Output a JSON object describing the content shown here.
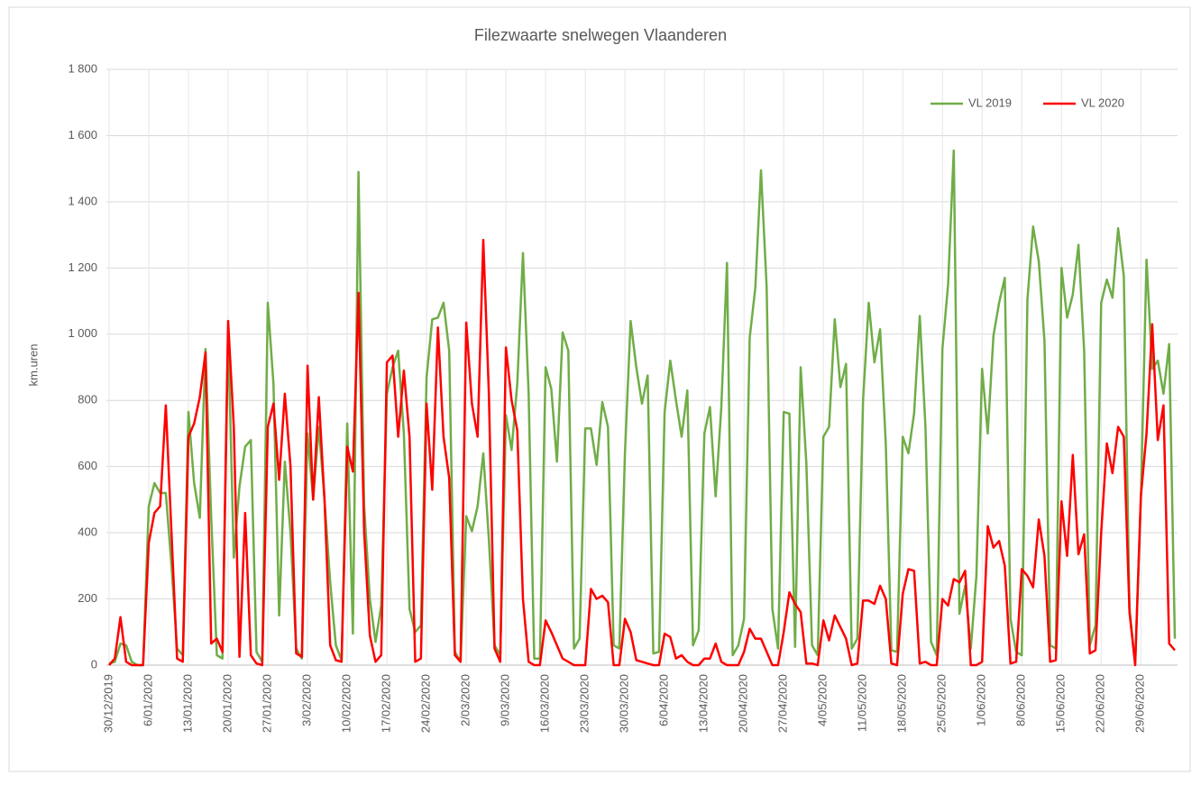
{
  "chart_data": {
    "type": "line",
    "title": "Filezwaarte snelwegen Vlaanderen",
    "y_label": "km.uren",
    "categories": [
      "30/12/2019",
      null,
      null,
      null,
      null,
      null,
      null,
      "6/01/2020",
      null,
      null,
      null,
      null,
      null,
      null,
      "13/01/2020",
      null,
      null,
      null,
      null,
      null,
      null,
      "20/01/2020",
      null,
      null,
      null,
      null,
      null,
      null,
      "27/01/2020",
      null,
      null,
      null,
      null,
      null,
      null,
      "3/02/2020",
      null,
      null,
      null,
      null,
      null,
      null,
      "10/02/2020",
      null,
      null,
      null,
      null,
      null,
      null,
      "17/02/2020",
      null,
      null,
      null,
      null,
      null,
      null,
      "24/02/2020",
      null,
      null,
      null,
      null,
      null,
      null,
      "2/03/2020",
      null,
      null,
      null,
      null,
      null,
      null,
      "9/03/2020",
      null,
      null,
      null,
      null,
      null,
      null,
      "16/03/2020",
      null,
      null,
      null,
      null,
      null,
      null,
      "23/03/2020",
      null,
      null,
      null,
      null,
      null,
      null,
      "30/03/2020",
      null,
      null,
      null,
      null,
      null,
      null,
      "6/04/2020",
      null,
      null,
      null,
      null,
      null,
      null,
      "13/04/2020",
      null,
      null,
      null,
      null,
      null,
      null,
      "20/04/2020",
      null,
      null,
      null,
      null,
      null,
      null,
      "27/04/2020",
      null,
      null,
      null,
      null,
      null,
      null,
      "4/05/2020",
      null,
      null,
      null,
      null,
      null,
      null,
      "11/05/2020",
      null,
      null,
      null,
      null,
      null,
      null,
      "18/05/2020",
      null,
      null,
      null,
      null,
      null,
      null,
      "25/05/2020",
      null,
      null,
      null,
      null,
      null,
      null,
      "1/06/2020",
      null,
      null,
      null,
      null,
      null,
      null,
      "8/06/2020",
      null,
      null,
      null,
      null,
      null,
      null,
      "15/06/2020",
      null,
      null,
      null,
      null,
      null,
      null,
      "22/06/2020",
      null,
      null,
      null,
      null,
      null,
      null,
      "29/06/2020",
      null,
      null,
      null,
      null,
      null,
      null
    ],
    "series": [
      {
        "name": "VL 2019",
        "color": "#70ad47",
        "values": [
          5,
          10,
          65,
          60,
          10,
          0,
          0,
          480,
          550,
          520,
          520,
          300,
          50,
          30,
          765,
          550,
          445,
          955,
          450,
          30,
          20,
          1010,
          325,
          540,
          660,
          680,
          40,
          10,
          1095,
          850,
          150,
          615,
          400,
          50,
          20,
          700,
          500,
          720,
          500,
          250,
          60,
          15,
          730,
          95,
          1490,
          480,
          200,
          70,
          180,
          820,
          900,
          950,
          700,
          170,
          100,
          120,
          870,
          1045,
          1050,
          1095,
          950,
          40,
          10,
          450,
          405,
          480,
          640,
          380,
          60,
          30,
          755,
          650,
          850,
          1245,
          820,
          20,
          20,
          900,
          835,
          615,
          1005,
          950,
          50,
          80,
          715,
          715,
          605,
          795,
          720,
          60,
          50,
          640,
          1040,
          900,
          790,
          875,
          35,
          40,
          765,
          920,
          800,
          690,
          830,
          60,
          105,
          700,
          780,
          510,
          780,
          1215,
          30,
          60,
          140,
          990,
          1140,
          1495,
          1140,
          170,
          50,
          765,
          760,
          55,
          900,
          610,
          60,
          30,
          690,
          720,
          1045,
          840,
          910,
          50,
          80,
          800,
          1095,
          915,
          1015,
          670,
          45,
          40,
          690,
          640,
          760,
          1055,
          720,
          70,
          30,
          955,
          1150,
          1555,
          155,
          240,
          50,
          270,
          895,
          700,
          995,
          1095,
          1170,
          140,
          40,
          30,
          1105,
          1325,
          1220,
          980,
          60,
          50,
          1200,
          1050,
          1120,
          1270,
          950,
          60,
          120,
          1095,
          1165,
          1110,
          1320,
          1175,
          170,
          5,
          500,
          1225,
          895,
          920,
          820,
          970,
          80
        ]
      },
      {
        "name": "VL 2020",
        "color": "#ff0000",
        "values": [
          0,
          20,
          145,
          10,
          0,
          0,
          0,
          370,
          460,
          480,
          785,
          400,
          20,
          10,
          690,
          730,
          810,
          945,
          65,
          80,
          40,
          1040,
          720,
          25,
          460,
          30,
          5,
          0,
          720,
          790,
          560,
          820,
          600,
          35,
          25,
          905,
          500,
          810,
          500,
          60,
          15,
          10,
          660,
          585,
          1125,
          400,
          90,
          10,
          30,
          915,
          935,
          690,
          890,
          690,
          10,
          20,
          790,
          530,
          1020,
          690,
          565,
          30,
          10,
          1035,
          790,
          690,
          1285,
          820,
          50,
          10,
          960,
          800,
          710,
          200,
          10,
          0,
          0,
          135,
          100,
          60,
          20,
          10,
          0,
          0,
          0,
          230,
          200,
          210,
          190,
          0,
          0,
          140,
          100,
          15,
          10,
          5,
          0,
          0,
          95,
          85,
          20,
          30,
          10,
          0,
          0,
          20,
          20,
          65,
          10,
          0,
          0,
          0,
          40,
          110,
          80,
          80,
          40,
          0,
          0,
          100,
          220,
          185,
          160,
          5,
          5,
          0,
          135,
          75,
          150,
          115,
          80,
          0,
          5,
          195,
          195,
          185,
          240,
          200,
          5,
          0,
          215,
          290,
          285,
          5,
          10,
          0,
          0,
          200,
          180,
          260,
          250,
          285,
          0,
          0,
          10,
          420,
          355,
          375,
          300,
          5,
          10,
          290,
          270,
          235,
          440,
          330,
          10,
          15,
          495,
          330,
          635,
          335,
          395,
          35,
          45,
          400,
          670,
          580,
          720,
          690,
          160,
          0,
          510,
          700,
          1030,
          680,
          785,
          65,
          45
        ]
      }
    ],
    "ylim": [
      0,
      1800
    ],
    "yticks": [
      0,
      200,
      400,
      600,
      800,
      {
        "value": 1000,
        "label": "1 000"
      },
      {
        "value": 1200,
        "label": "1 200"
      },
      {
        "value": 1400,
        "label": "1 400"
      },
      {
        "value": 1600,
        "label": "1 600"
      },
      {
        "value": 1800,
        "label": "1 800"
      }
    ],
    "grid": true,
    "legend": "top-right"
  }
}
